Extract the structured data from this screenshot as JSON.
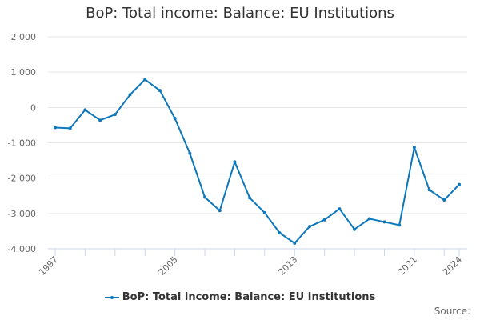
{
  "title": "BoP: Total income: Balance: EU Institutions",
  "legend": {
    "label": "BoP: Total income: Balance: EU Institutions"
  },
  "source_label": "Source:",
  "colors": {
    "series": "#0d77bb",
    "grid": "#e6e6e6",
    "axis": "#ccd6eb",
    "text": "#333333",
    "tick_text": "#666666"
  },
  "chart_data": {
    "type": "line",
    "title": "BoP: Total income: Balance: EU Institutions",
    "xlabel": "",
    "ylabel": "",
    "ylim": [
      -4000,
      2000
    ],
    "yticks": [
      2000,
      1000,
      0,
      -1000,
      -2000,
      -3000,
      -4000
    ],
    "ytick_labels": [
      "2 000",
      "1 000",
      "0",
      "-1 000",
      "-2 000",
      "-3 000",
      "-4 000"
    ],
    "xtick_labels": [
      "1997",
      "2005",
      "2013",
      "2021",
      "2024"
    ],
    "grid": true,
    "legend_position": "bottom",
    "x": [
      1997,
      1998,
      1999,
      2000,
      2001,
      2002,
      2003,
      2004,
      2005,
      2006,
      2007,
      2008,
      2009,
      2010,
      2011,
      2012,
      2013,
      2014,
      2015,
      2016,
      2017,
      2018,
      2019,
      2020,
      2021,
      2022,
      2023,
      2024
    ],
    "series": [
      {
        "name": "BoP: Total income: Balance: EU Institutions",
        "values": [
          -570,
          -590,
          -70,
          -360,
          -200,
          360,
          790,
          480,
          -310,
          -1300,
          -2540,
          -2920,
          -1540,
          -2560,
          -2980,
          -3550,
          -3840,
          -3370,
          -3180,
          -2870,
          -3450,
          -3150,
          -3240,
          -3330,
          -1130,
          -2330,
          -2620,
          -2180
        ]
      }
    ]
  }
}
